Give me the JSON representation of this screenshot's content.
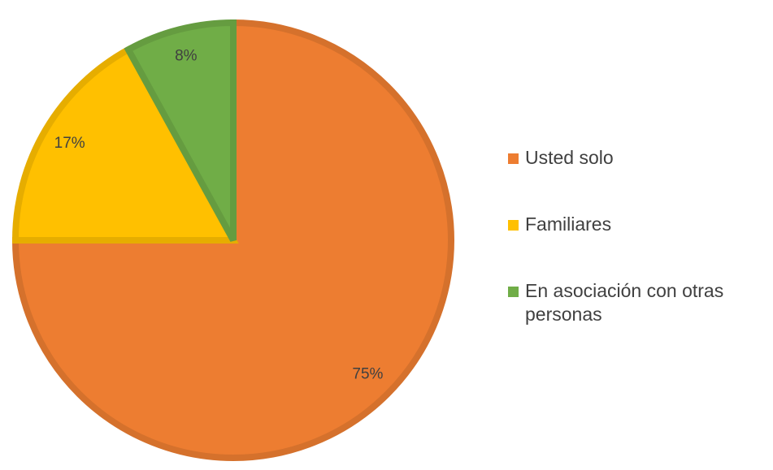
{
  "chart_data": {
    "type": "pie",
    "categories": [
      "Usted solo",
      "Familiares",
      "En asociación con otras personas"
    ],
    "values": [
      75,
      17,
      8
    ],
    "value_labels": [
      "75%",
      "17%",
      "8%"
    ],
    "colors": [
      "#ED7D31",
      "#FFC000",
      "#70AD47"
    ],
    "legend": "right"
  }
}
